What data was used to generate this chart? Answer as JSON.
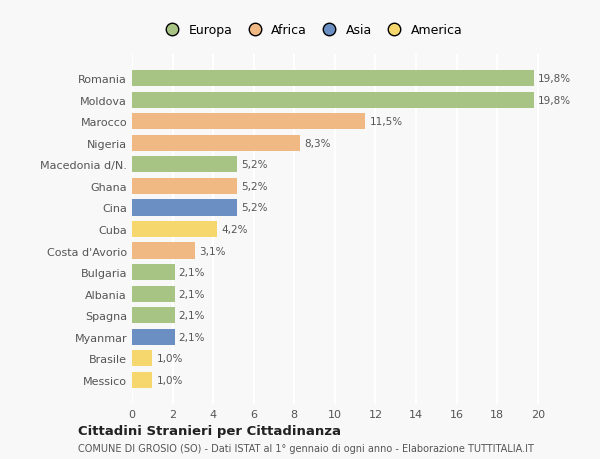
{
  "countries": [
    "Romania",
    "Moldova",
    "Marocco",
    "Nigeria",
    "Macedonia d/N.",
    "Ghana",
    "Cina",
    "Cuba",
    "Costa d'Avorio",
    "Bulgaria",
    "Albania",
    "Spagna",
    "Myanmar",
    "Brasile",
    "Messico"
  ],
  "values": [
    19.8,
    19.8,
    11.5,
    8.3,
    5.2,
    5.2,
    5.2,
    4.2,
    3.1,
    2.1,
    2.1,
    2.1,
    2.1,
    1.0,
    1.0
  ],
  "labels": [
    "19,8%",
    "19,8%",
    "11,5%",
    "8,3%",
    "5,2%",
    "5,2%",
    "5,2%",
    "4,2%",
    "3,1%",
    "2,1%",
    "2,1%",
    "2,1%",
    "2,1%",
    "1,0%",
    "1,0%"
  ],
  "colors": [
    "#a8c484",
    "#a8c484",
    "#f0b882",
    "#f0b882",
    "#a8c484",
    "#f0b882",
    "#6b8fc2",
    "#f5d76e",
    "#f0b882",
    "#a8c484",
    "#a8c484",
    "#a8c484",
    "#6b8fc2",
    "#f5d76e",
    "#f5d76e"
  ],
  "legend": [
    {
      "label": "Europa",
      "color": "#a8c484"
    },
    {
      "label": "Africa",
      "color": "#f0b882"
    },
    {
      "label": "Asia",
      "color": "#6b8fc2"
    },
    {
      "label": "America",
      "color": "#f5d76e"
    }
  ],
  "title": "Cittadini Stranieri per Cittadinanza",
  "subtitle": "COMUNE DI GROSIO (SO) - Dati ISTAT al 1° gennaio di ogni anno - Elaborazione TUTTITALIA.IT",
  "xlim": [
    0,
    21
  ],
  "xticks": [
    0,
    2,
    4,
    6,
    8,
    10,
    12,
    14,
    16,
    18,
    20
  ],
  "background_color": "#f8f8f8",
  "plot_bg_color": "#f8f8f8",
  "grid_color": "#ffffff"
}
